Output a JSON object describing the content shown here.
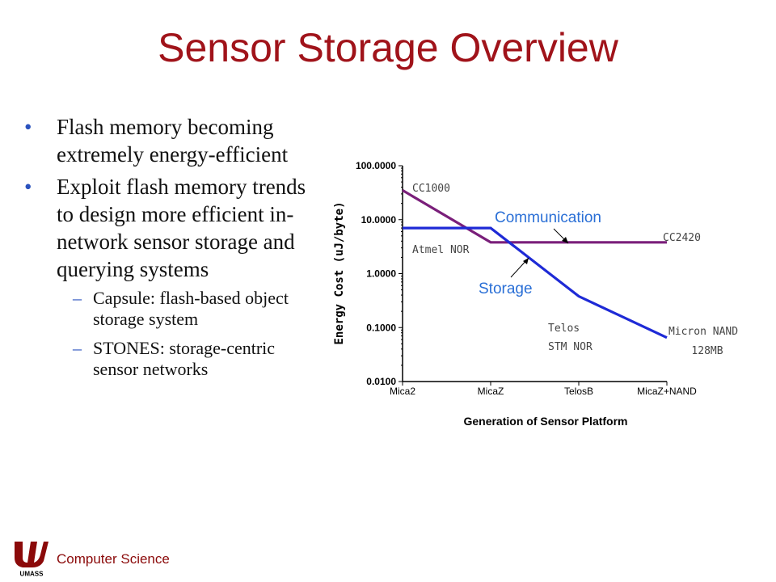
{
  "slide": {
    "title": "Sensor Storage Overview",
    "bullets": [
      "Flash memory becoming extremely energy-efficient",
      "Exploit flash memory trends to design more efficient in-network sensor storage and querying systems"
    ],
    "sub_bullets": [
      "Capsule: flash-based object storage system",
      "STONES: storage-centric sensor networks"
    ],
    "footer": "Computer Science",
    "logo_text": "UMASS"
  },
  "colors": {
    "title": "#a0131a",
    "communication": "#7a1f7a",
    "storage": "#1e2ad6",
    "callout": "#2a6fd6"
  },
  "chart_data": {
    "type": "line",
    "xlabel": "Generation of Sensor Platform",
    "ylabel": "Energy Cost (uJ/byte)",
    "categories": [
      "Mica2",
      "MicaZ",
      "TelosB",
      "MicaZ+NAND"
    ],
    "y_scale": "log",
    "ylim": [
      0.01,
      100
    ],
    "y_ticks": [
      "100.0000",
      "10.0000",
      "1.0000",
      "0.1000",
      "0.0100"
    ],
    "series": [
      {
        "name": "Communication",
        "x": [
          0,
          1,
          2,
          3
        ],
        "values": [
          35,
          3.8,
          3.8,
          3.8
        ]
      },
      {
        "name": "Storage",
        "x": [
          0,
          1,
          2,
          3
        ],
        "values": [
          7,
          7,
          0.38,
          0.065
        ]
      }
    ],
    "annotations": [
      "CC1000",
      "CC2420",
      "Atmel NOR",
      "Telos STM NOR",
      "Micron NAND 128MB"
    ]
  }
}
